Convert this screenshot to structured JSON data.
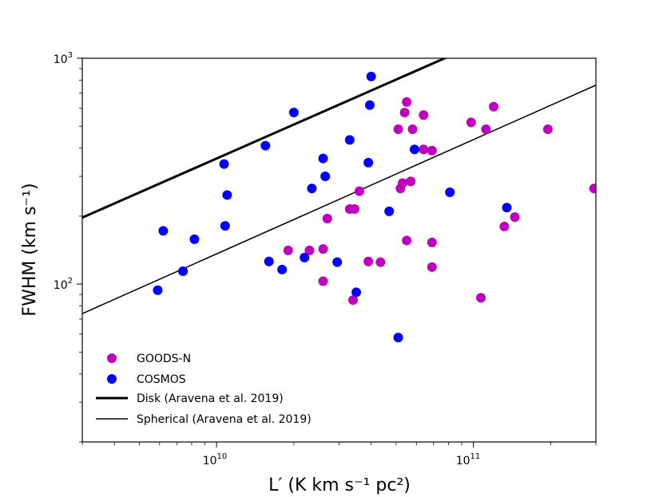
{
  "chart_data": {
    "type": "scatter",
    "xscale": "log",
    "yscale": "log",
    "xlim": [
      3000000000,
      300000000000
    ],
    "ylim": [
      20,
      1000
    ],
    "xlabel": "L′ (K km s⁻¹ pc²)",
    "ylabel": "FWHM (km s⁻¹)",
    "xticks": [
      {
        "value": 10000000000,
        "base": "10",
        "exp": "10"
      },
      {
        "value": 100000000000,
        "base": "10",
        "exp": "11"
      }
    ],
    "yticks": [
      {
        "value": 100,
        "base": "10",
        "exp": "2"
      },
      {
        "value": 1000,
        "base": "10",
        "exp": "3"
      }
    ],
    "legend_position": "lower-left",
    "series": [
      {
        "name": "GOODS-N",
        "color": "#bf00bf",
        "points": [
          [
            55000000000.0,
            640
          ],
          [
            120000000000.0,
            610
          ],
          [
            54000000000.0,
            575
          ],
          [
            64000000000.0,
            560
          ],
          [
            98000000000.0,
            520
          ],
          [
            51000000000.0,
            485
          ],
          [
            58000000000.0,
            485
          ],
          [
            112000000000.0,
            485
          ],
          [
            195000000000.0,
            485
          ],
          [
            64000000000.0,
            395
          ],
          [
            69000000000.0,
            390
          ],
          [
            57000000000.0,
            285
          ],
          [
            53000000000.0,
            280
          ],
          [
            52000000000.0,
            265
          ],
          [
            36000000000.0,
            258
          ],
          [
            295000000000.0,
            265
          ],
          [
            33000000000.0,
            215
          ],
          [
            34500000000.0,
            215
          ],
          [
            27000000000.0,
            195
          ],
          [
            145000000000.0,
            198
          ],
          [
            132000000000.0,
            180
          ],
          [
            55000000000.0,
            156
          ],
          [
            69000000000.0,
            153
          ],
          [
            19000000000.0,
            141
          ],
          [
            23000000000.0,
            141
          ],
          [
            26000000000.0,
            143
          ],
          [
            39000000000.0,
            126
          ],
          [
            43500000000.0,
            125
          ],
          [
            69000000000.0,
            119
          ],
          [
            26000000000.0,
            103
          ],
          [
            107000000000.0,
            87
          ],
          [
            34000000000.0,
            85
          ]
        ]
      },
      {
        "name": "COSMOS",
        "color": "#0000ff",
        "points": [
          [
            40000000000.0,
            830
          ],
          [
            39500000000.0,
            620
          ],
          [
            20000000000.0,
            575
          ],
          [
            33000000000.0,
            435
          ],
          [
            15500000000.0,
            410
          ],
          [
            59000000000.0,
            395
          ],
          [
            26000000000.0,
            360
          ],
          [
            39000000000.0,
            345
          ],
          [
            10700000000.0,
            340
          ],
          [
            26500000000.0,
            300
          ],
          [
            23500000000.0,
            265
          ],
          [
            81000000000.0,
            255
          ],
          [
            11000000000.0,
            248
          ],
          [
            135000000000.0,
            218
          ],
          [
            47000000000.0,
            210
          ],
          [
            10800000000.0,
            181
          ],
          [
            6200000000.0,
            172
          ],
          [
            8200000000.0,
            158
          ],
          [
            16000000000.0,
            126
          ],
          [
            22000000000.0,
            131
          ],
          [
            29500000000.0,
            125
          ],
          [
            18000000000.0,
            116
          ],
          [
            7400000000.0,
            114
          ],
          [
            5900000000.0,
            94
          ],
          [
            35000000000.0,
            92
          ],
          [
            51000000000.0,
            58
          ]
        ]
      }
    ],
    "lines": [
      {
        "name": "Disk (Aravena et al. 2019)",
        "color": "#000000",
        "style": "thick",
        "from": [
          3000000000,
          197
        ],
        "to": [
          300000000000,
          1970
        ]
      },
      {
        "name": "Spherical (Aravena et al. 2019)",
        "color": "#000000",
        "style": "thin",
        "from": [
          3000000000,
          74
        ],
        "to": [
          300000000000,
          760
        ]
      }
    ]
  }
}
